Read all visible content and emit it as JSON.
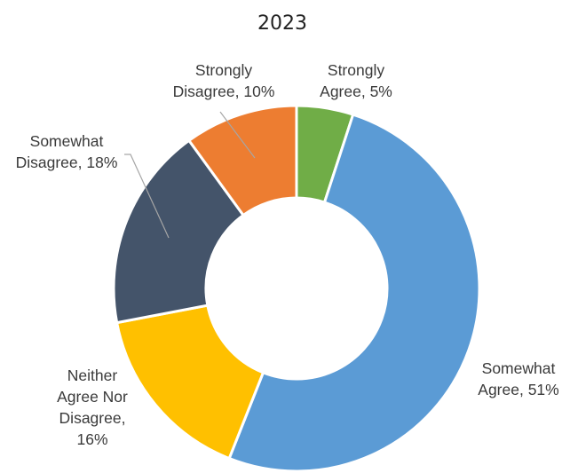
{
  "chart_data": {
    "type": "pie",
    "title": "2023",
    "slices": [
      {
        "label_lines": [
          "Strongly",
          "Agree, 5%"
        ],
        "value": 5,
        "color": "#70AD47"
      },
      {
        "label_lines": [
          "Somewhat",
          "Agree, 51%"
        ],
        "value": 51,
        "color": "#5B9BD5"
      },
      {
        "label_lines": [
          "Neither",
          "Agree Nor",
          "Disagree,",
          "16%"
        ],
        "value": 16,
        "color": "#FFC000"
      },
      {
        "label_lines": [
          "Somewhat",
          "Disagree, 18%"
        ],
        "value": 18,
        "color": "#44546A"
      },
      {
        "label_lines": [
          "Strongly",
          "Disagree, 10%"
        ],
        "value": 10,
        "color": "#ED7D31"
      }
    ]
  }
}
